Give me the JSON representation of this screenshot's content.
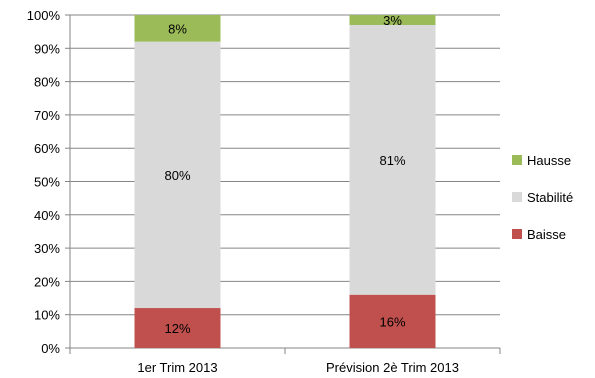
{
  "chart_data": {
    "type": "bar",
    "stacked": true,
    "percent_stacked": true,
    "categories": [
      "1er Trim 2013",
      "Prévision 2è Trim 2013"
    ],
    "series": [
      {
        "name": "Baisse",
        "values": [
          12,
          16
        ],
        "labels": [
          "12%",
          "16%"
        ],
        "color": "#c0504d"
      },
      {
        "name": "Stabilité",
        "values": [
          80,
          81
        ],
        "labels": [
          "80%",
          "81%"
        ],
        "color": "#d9d9d9"
      },
      {
        "name": "Hausse",
        "values": [
          8,
          3
        ],
        "labels": [
          "8%",
          "3%"
        ],
        "color": "#9bbb59"
      }
    ],
    "y_ticks": [
      "0%",
      "10%",
      "20%",
      "30%",
      "40%",
      "50%",
      "60%",
      "70%",
      "80%",
      "90%",
      "100%"
    ],
    "ylim": [
      0,
      100
    ],
    "grid": true,
    "legend": {
      "position": "right",
      "order": [
        "Hausse",
        "Stabilité",
        "Baisse"
      ]
    },
    "title": "",
    "xlabel": "",
    "ylabel": ""
  }
}
